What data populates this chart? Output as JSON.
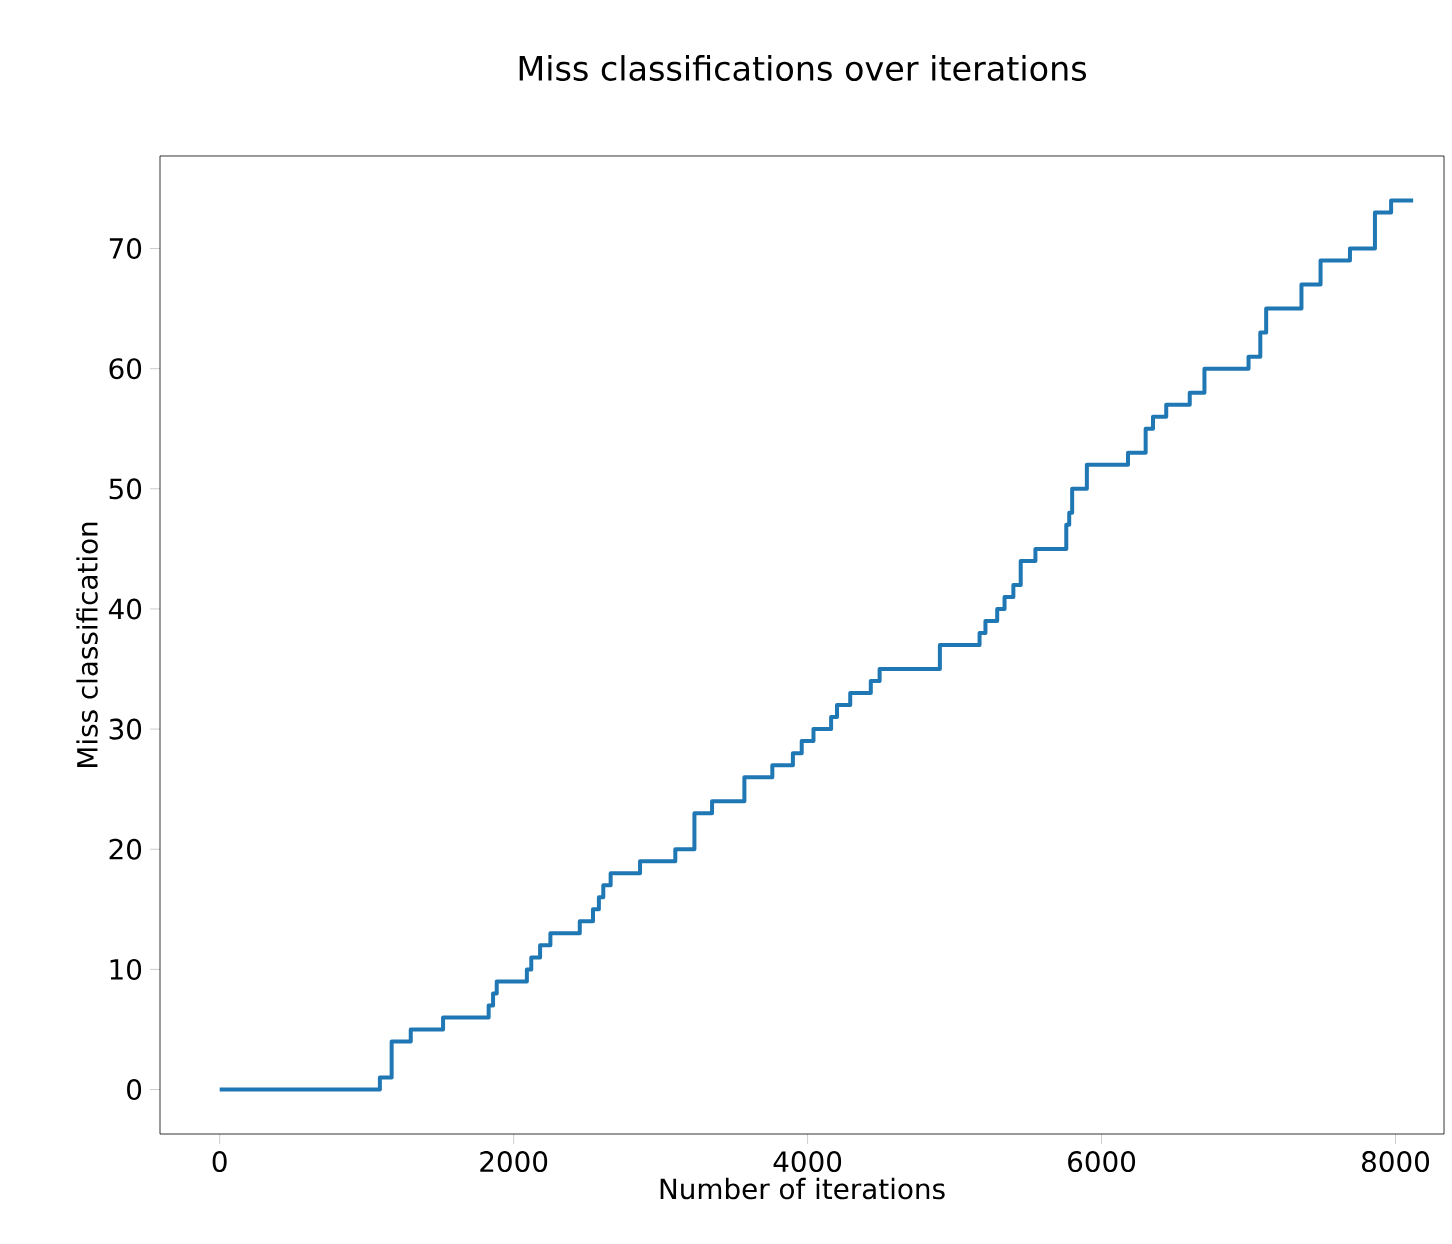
{
  "chart_data": {
    "type": "step",
    "title": "Miss classifications over iterations",
    "xlabel": "Number of iterations",
    "ylabel": "Miss classification",
    "x": [
      0,
      1090,
      1170,
      1300,
      1520,
      1830,
      1860,
      1885,
      2090,
      2120,
      2180,
      2250,
      2450,
      2540,
      2580,
      2610,
      2660,
      2860,
      3100,
      3230,
      3350,
      3570,
      3760,
      3900,
      3960,
      4040,
      4160,
      4200,
      4290,
      4430,
      4490,
      4900,
      5170,
      5210,
      5290,
      5340,
      5400,
      5450,
      5550,
      5760,
      5780,
      5800,
      5900,
      6180,
      6300,
      6350,
      6440,
      6600,
      6700,
      7000,
      7080,
      7120,
      7360,
      7490,
      7690,
      7860,
      7970,
      8120
    ],
    "values": [
      0,
      1,
      4,
      5,
      6,
      7,
      8,
      9,
      10,
      11,
      12,
      13,
      14,
      15,
      16,
      17,
      18,
      19,
      20,
      23,
      24,
      26,
      27,
      28,
      29,
      30,
      31,
      32,
      33,
      34,
      35,
      37,
      38,
      39,
      40,
      41,
      42,
      44,
      45,
      47,
      48,
      50,
      52,
      53,
      55,
      56,
      57,
      58,
      60,
      61,
      63,
      65,
      67,
      69,
      70,
      73,
      74,
      74
    ],
    "color": "#1f77b4",
    "xlim": [
      -406,
      8330
    ],
    "ylim": [
      -3.7,
      77.7
    ],
    "xticks": [
      0,
      2000,
      4000,
      6000,
      8000
    ],
    "yticks": [
      0,
      10,
      20,
      30,
      40,
      50,
      60,
      70
    ],
    "grid": false
  }
}
